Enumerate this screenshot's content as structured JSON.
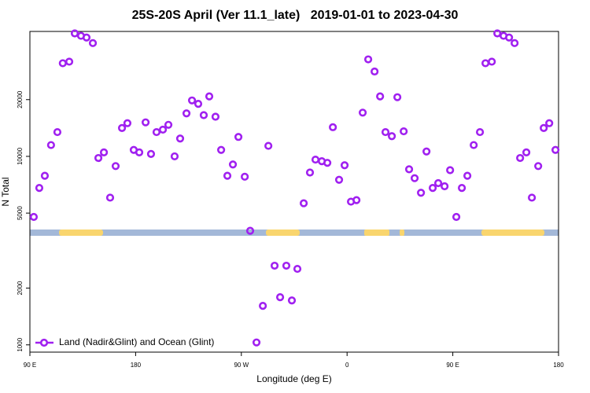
{
  "chart_data": {
    "type": "scatter",
    "title": "25S-20S April (Ver 11.1_late)   2019-01-01 to 2023-04-30",
    "x_label": "Longitude (deg E)",
    "y_label": "N Total",
    "log_y": true,
    "legend_position": "lower left",
    "xlim": [
      90,
      540
    ],
    "xticks": [
      {
        "value": 90,
        "label": "90 E"
      },
      180,
      {
        "value": 270,
        "label": "90 W"
      },
      {
        "value": 360,
        "label": "0"
      },
      {
        "value": 450,
        "label": "90 E"
      },
      {
        "value": 540,
        "label": "180"
      }
    ],
    "ylim": [
      915,
      46000
    ],
    "yticks": [
      1000,
      2000,
      5000,
      10000,
      20000
    ],
    "series": [
      {
        "name": "Land (Nadir&Glint) and Ocean (Glint)",
        "color": "#a020f0",
        "x": [
          93.3,
          98,
          102.7,
          108,
          113.4,
          118,
          123.5,
          128.2,
          133.5,
          138.2,
          143.6,
          148.3,
          153,
          158.3,
          163,
          168.4,
          173,
          178.4,
          183.1,
          188.5,
          193.1,
          197.8,
          203.2,
          207.9,
          213.2,
          217.9,
          223.3,
          228,
          233.3,
          238,
          242.7,
          248,
          252.8,
          258.1,
          262.8,
          267.5,
          272.9,
          277.5,
          282.9,
          288.3,
          293,
          298.3,
          303,
          308.3,
          313,
          317.7,
          323.1,
          328.4,
          333.1,
          338.5,
          343.2,
          347.9,
          353.2,
          357.9,
          363.3,
          368,
          373.3,
          378,
          383.4,
          388.1,
          392.7,
          398.1,
          402.8,
          408.2,
          412.8,
          417.5,
          422.9,
          427.6,
          432.9,
          437.6,
          443,
          447.7,
          453,
          457.7,
          462.4,
          467.8,
          473.1,
          477.8,
          483.2,
          487.9,
          493.2,
          497.9,
          502.6,
          507.3,
          512.6,
          517.3,
          522.7,
          527.4,
          532.1,
          537.4
        ],
        "values": [
          4770,
          6800,
          7890,
          11480,
          13450,
          31200,
          31800,
          44900,
          43600,
          42700,
          39900,
          9800,
          10500,
          6040,
          8880,
          14140,
          15000,
          10820,
          10500,
          15150,
          10300,
          13450,
          13860,
          14700,
          10000,
          12430,
          16900,
          19800,
          19000,
          16550,
          20800,
          16230,
          10820,
          7890,
          9060,
          12680,
          7800,
          4030,
          1030,
          1610,
          11370,
          2630,
          1790,
          2630,
          1720,
          2530,
          5640,
          8210,
          9610,
          9420,
          9240,
          14280,
          7510,
          8970,
          5750,
          5860,
          17060,
          32700,
          28200,
          20800,
          13450,
          12800,
          20600,
          13580,
          8540,
          7660,
          6410,
          10610,
          6800,
          7210,
          6940,
          8450,
          4770,
          6800,
          7890,
          11480,
          13450,
          31200,
          31800,
          44900,
          43600,
          42700,
          39900,
          9800,
          10500,
          6040,
          8880,
          14140,
          15000,
          10820
        ]
      }
    ]
  }
}
